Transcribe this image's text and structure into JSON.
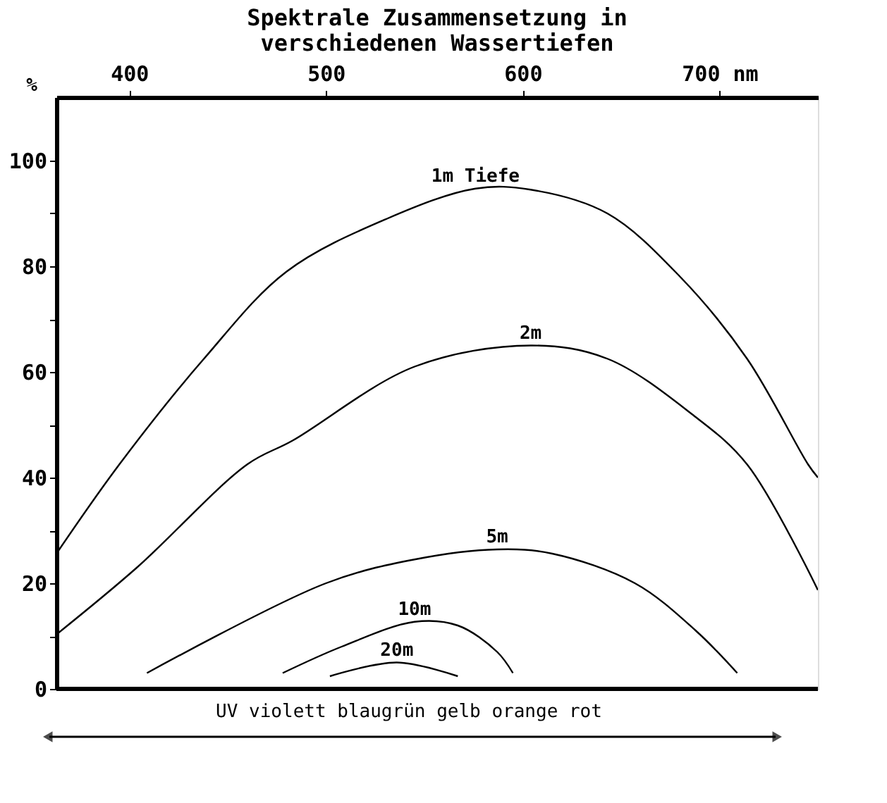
{
  "chart_data": {
    "type": "line",
    "title": "Spektrale Zusammensetzung in\nverschiedenen Wassertiefen",
    "ylabel": "%",
    "xlim": [
      363,
      750
    ],
    "ylim": [
      0,
      112
    ],
    "xticks": [
      400,
      500,
      600,
      {
        "value": 700,
        "label": "700 nm"
      }
    ],
    "yticks": [
      0,
      {
        "value": 10,
        "label": null
      },
      20,
      {
        "value": 30,
        "label": null
      },
      40,
      {
        "value": 50,
        "label": null
      },
      60,
      {
        "value": 70,
        "label": null
      },
      80,
      {
        "value": 90,
        "label": null
      },
      100
    ],
    "grid": false,
    "legend": false,
    "marker": "none",
    "line_style": "solid",
    "annotations": [
      "UV violett blaugrün gelb orange rot"
    ],
    "series": [
      {
        "name": "1m Tiefe",
        "color": "#000000",
        "x": [
          363,
          395,
          438,
          480,
          531,
          576,
          604,
          643,
          680,
          714,
          745,
          750
        ],
        "values": [
          25.6,
          42.5,
          62.5,
          79,
          89,
          94.7,
          94.5,
          90,
          78,
          62.5,
          42.5,
          40
        ]
      },
      {
        "name": "2m",
        "color": "#000000",
        "x": [
          363,
          404,
          460,
          483,
          545,
          604,
          643,
          686,
          714,
          750
        ],
        "values": [
          10.3,
          23,
          42.5,
          47,
          61,
          65,
          62.5,
          52,
          42.5,
          18.7
        ]
      },
      {
        "name": "5m",
        "color": "#000000",
        "x": [
          409,
          500,
          545,
          587,
          615,
          657,
          688,
          709
        ],
        "values": [
          3,
          20,
          24.5,
          26.4,
          25.6,
          20,
          11,
          3
        ]
      },
      {
        "name": "10m",
        "color": "#000000",
        "x": [
          478,
          508,
          545,
          567,
          587,
          595
        ],
        "values": [
          3,
          8,
          12.7,
          12,
          7,
          3
        ]
      },
      {
        "name": "20m",
        "color": "#000000",
        "x": [
          502,
          536,
          567
        ],
        "values": [
          2.4,
          5,
          2.4
        ]
      }
    ]
  }
}
